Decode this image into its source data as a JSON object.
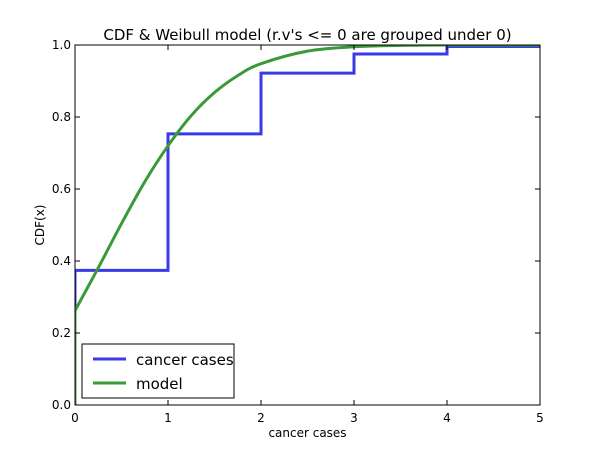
{
  "chart_data": {
    "type": "line",
    "title": "CDF & Weibull model (r.v's <= 0 are grouped under 0)",
    "xlabel": "cancer cases",
    "ylabel": "CDF(x)",
    "xlim": [
      0,
      5
    ],
    "ylim": [
      0,
      1
    ],
    "x_ticks": [
      0,
      1,
      2,
      3,
      4,
      5
    ],
    "x_tick_labels": [
      "0",
      "1",
      "2",
      "3",
      "4",
      "5"
    ],
    "y_ticks": [
      0.0,
      0.2,
      0.4,
      0.6,
      0.8,
      1.0
    ],
    "y_tick_labels": [
      "0.0",
      "0.2",
      "0.4",
      "0.6",
      "0.8",
      "1.0"
    ],
    "grid": false,
    "legend_position": "lower-left",
    "series": [
      {
        "name": "cancer cases",
        "style": "step",
        "color": "#3a3ae6",
        "points": [
          [
            0,
            0
          ],
          [
            0,
            0.374
          ],
          [
            1,
            0.374
          ],
          [
            1,
            0.753
          ],
          [
            2,
            0.753
          ],
          [
            2,
            0.922
          ],
          [
            3,
            0.922
          ],
          [
            3,
            0.975
          ],
          [
            4,
            0.975
          ],
          [
            4,
            0.996
          ],
          [
            5,
            0.996
          ]
        ]
      },
      {
        "name": "model",
        "style": "smooth",
        "color": "#3a9a3a",
        "points": [
          [
            0,
            0
          ],
          [
            0,
            0.262
          ],
          [
            0.25,
            0.381
          ],
          [
            0.5,
            0.504
          ],
          [
            0.75,
            0.62
          ],
          [
            1,
            0.72
          ],
          [
            1.25,
            0.804
          ],
          [
            1.5,
            0.868
          ],
          [
            1.75,
            0.915
          ],
          [
            2,
            0.948
          ],
          [
            2.5,
            0.983
          ],
          [
            3,
            0.995
          ],
          [
            3.5,
            0.999
          ],
          [
            4,
            1.0
          ],
          [
            5,
            1.0
          ]
        ]
      }
    ]
  }
}
